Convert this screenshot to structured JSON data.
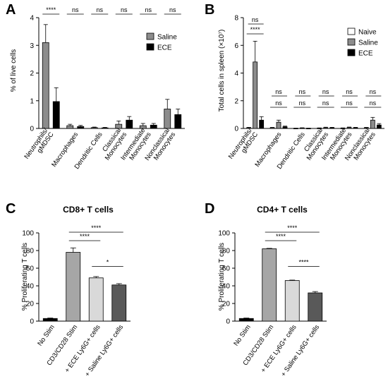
{
  "chart_data": [
    {
      "panel": "A",
      "type": "bar",
      "title": "",
      "ylabel": "% of live cells",
      "ylim": [
        0,
        4
      ],
      "yticks": [
        0,
        1,
        2,
        3,
        4
      ],
      "categories": [
        "Neutrophils/\ngMDSC",
        "Macrophages",
        "Dendritic Cells",
        "Classical\nMonocytes",
        "Intermediate\nMonocytes",
        "Nonclassical\nMonocytes"
      ],
      "series": [
        {
          "name": "Saline",
          "color": "#8c8c8c",
          "values": [
            3.1,
            0.1,
            0.03,
            0.15,
            0.1,
            0.7
          ],
          "errors": [
            0.65,
            0.05,
            0.02,
            0.12,
            0.08,
            0.35
          ]
        },
        {
          "name": "ECE",
          "color": "#000000",
          "values": [
            0.97,
            0.07,
            0.02,
            0.3,
            0.12,
            0.5
          ],
          "errors": [
            0.5,
            0.04,
            0.02,
            0.13,
            0.06,
            0.2
          ]
        }
      ],
      "significance": [
        "****",
        "ns",
        "ns",
        "ns",
        "ns",
        "ns"
      ],
      "legend_position": "top-right"
    },
    {
      "panel": "B",
      "type": "bar",
      "title": "",
      "ylabel": "Total cells in spleen (×10⁷)",
      "ylim": [
        0,
        8
      ],
      "yticks": [
        0,
        2,
        4,
        6,
        8
      ],
      "categories": [
        "Neutrophils/\ngMDSC",
        "Macrophages",
        "Dendritic Cells",
        "Classical\nMonocytes",
        "Intermediate\nMonocytes",
        "Nonclassical\nMonocytes"
      ],
      "series": [
        {
          "name": "Naive",
          "color": "#ffffff",
          "values": [
            0.05,
            0.05,
            0.01,
            0.02,
            0.02,
            0.05
          ],
          "errors": [
            0.03,
            0.03,
            0.01,
            0.02,
            0.02,
            0.03
          ]
        },
        {
          "name": "Saline",
          "color": "#8c8c8c",
          "values": [
            4.8,
            0.45,
            0.03,
            0.05,
            0.06,
            0.6
          ],
          "errors": [
            1.5,
            0.15,
            0.02,
            0.04,
            0.04,
            0.2
          ]
        },
        {
          "name": "ECE",
          "color": "#000000",
          "values": [
            0.6,
            0.12,
            0.01,
            0.05,
            0.05,
            0.25
          ],
          "errors": [
            0.25,
            0.05,
            0.01,
            0.03,
            0.03,
            0.1
          ]
        }
      ],
      "significance_upper": [
        "ns",
        "ns",
        "ns",
        "ns",
        "ns",
        "ns"
      ],
      "significance_lower": [
        "****",
        "ns",
        "ns",
        "ns",
        "ns",
        "ns"
      ],
      "legend_position": "top-right"
    },
    {
      "panel": "C",
      "type": "bar",
      "title": "CD8+ T cells",
      "ylabel": "% Proliferating  T cells",
      "ylim": [
        0,
        100
      ],
      "yticks": [
        0,
        20,
        40,
        60,
        80,
        100
      ],
      "categories": [
        "No Stim",
        "CD3/CD28 Stim",
        "+ ECE Ly6G+ cells",
        "+ Saline Ly6G+ cells"
      ],
      "values": [
        3,
        78,
        49,
        41
      ],
      "errors": [
        0.5,
        5,
        1.5,
        1.5
      ],
      "colors": [
        "#000000",
        "#a6a6a6",
        "#d9d9d9",
        "#595959"
      ],
      "comparisons": [
        {
          "from": 1,
          "to": 3,
          "label": "****"
        },
        {
          "from": 1,
          "to": 2,
          "label": "****"
        },
        {
          "from": 2,
          "to": 3,
          "label": "*"
        }
      ]
    },
    {
      "panel": "D",
      "type": "bar",
      "title": "CD4+ T cells",
      "ylabel": "% Proliferating T cells",
      "ylim": [
        0,
        100
      ],
      "yticks": [
        0,
        20,
        40,
        60,
        80,
        100
      ],
      "categories": [
        "No Stim",
        "CD3/CD28 Stim",
        "+ ECE Ly6G+ cells",
        "+ Saline Ly6G+ cells"
      ],
      "values": [
        3,
        82,
        46,
        32
      ],
      "errors": [
        0.5,
        0.5,
        0.5,
        1.5
      ],
      "colors": [
        "#000000",
        "#a6a6a6",
        "#d9d9d9",
        "#595959"
      ],
      "comparisons": [
        {
          "from": 1,
          "to": 3,
          "label": "****"
        },
        {
          "from": 1,
          "to": 2,
          "label": "****"
        },
        {
          "from": 2,
          "to": 3,
          "label": "****"
        }
      ]
    }
  ]
}
